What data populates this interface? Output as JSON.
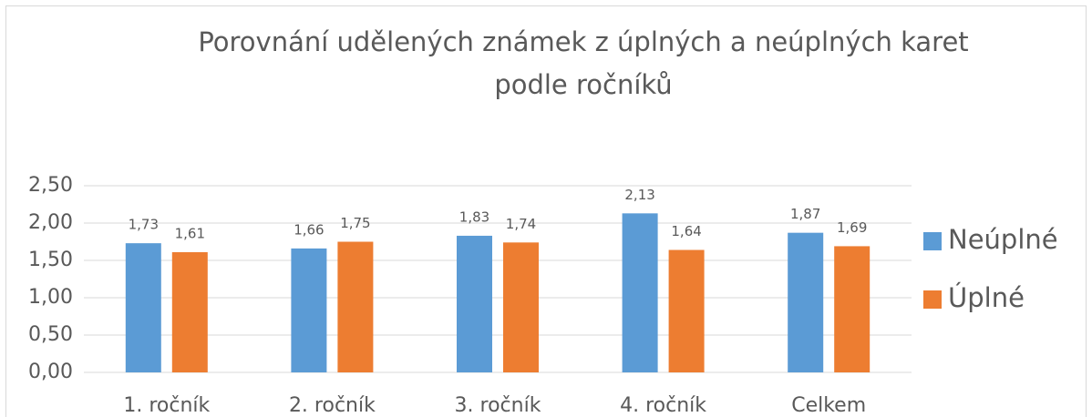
{
  "chart_data": {
    "type": "bar",
    "title": [
      "Porovnání udělených známek z úplných a neúplných karet",
      "podle ročníků"
    ],
    "categories": [
      "1. ročník",
      "2. ročník",
      "3. ročník",
      "4. ročník",
      "Celkem"
    ],
    "series": [
      {
        "name": "Neúplné",
        "color": "#5b9bd5",
        "values": [
          1.73,
          1.66,
          1.83,
          2.13,
          1.87
        ],
        "value_labels": [
          "1,73",
          "1,66",
          "1,83",
          "2,13",
          "1,87"
        ]
      },
      {
        "name": "Úplné",
        "color": "#ed7d31",
        "values": [
          1.61,
          1.75,
          1.74,
          1.64,
          1.69
        ],
        "value_labels": [
          "1,61",
          "1,75",
          "1,74",
          "1,64",
          "1,69"
        ]
      }
    ],
    "ylim": [
      0,
      2.5
    ],
    "yticks": [
      {
        "value": 0,
        "label": "0,00"
      },
      {
        "value": 0.5,
        "label": "0,50"
      },
      {
        "value": 1,
        "label": "1,00"
      },
      {
        "value": 1.5,
        "label": "1,50"
      },
      {
        "value": 2,
        "label": "2,00"
      },
      {
        "value": 2.5,
        "label": "2,50"
      }
    ],
    "grid": true,
    "legend": "right"
  }
}
